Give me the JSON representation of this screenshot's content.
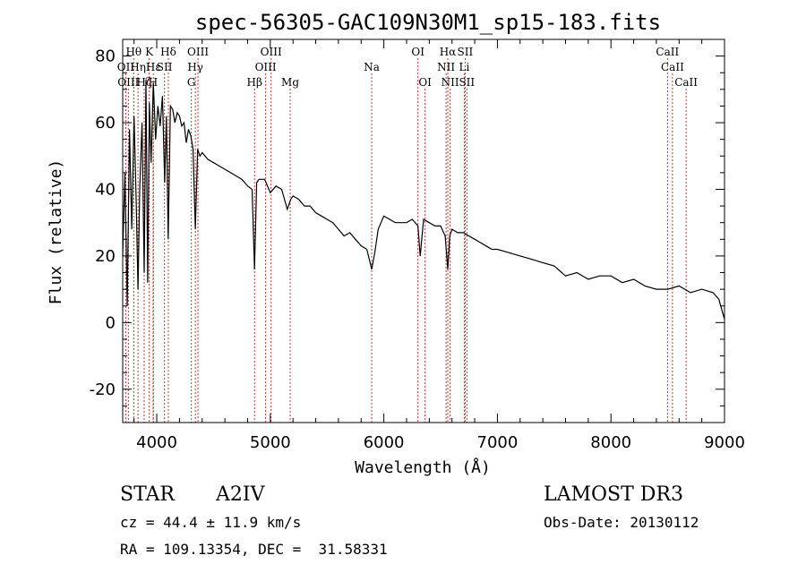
{
  "chart_data": {
    "type": "line",
    "title": "spec-56305-GAC109N30M1_sp15-183.fits",
    "xlabel": "Wavelength (Å)",
    "ylabel": "Flux (relative)",
    "xlim": [
      3700,
      9000
    ],
    "ylim": [
      -30,
      85
    ],
    "x_ticks": [
      4000,
      5000,
      6000,
      7000,
      8000,
      9000
    ],
    "y_ticks": [
      -20,
      0,
      20,
      40,
      60,
      80
    ],
    "grid": false,
    "series": [
      {
        "name": "flux",
        "color": "#000000",
        "x": [
          3700,
          3720,
          3740,
          3760,
          3780,
          3800,
          3820,
          3835,
          3850,
          3870,
          3889,
          3905,
          3920,
          3935,
          3950,
          3970,
          3990,
          4010,
          4030,
          4050,
          4070,
          4085,
          4101,
          4120,
          4140,
          4160,
          4180,
          4200,
          4220,
          4240,
          4260,
          4280,
          4300,
          4320,
          4340,
          4360,
          4380,
          4400,
          4450,
          4500,
          4550,
          4600,
          4650,
          4700,
          4750,
          4800,
          4840,
          4861,
          4880,
          4900,
          4950,
          5000,
          5050,
          5100,
          5150,
          5180,
          5200,
          5250,
          5300,
          5350,
          5400,
          5450,
          5500,
          5550,
          5600,
          5650,
          5700,
          5750,
          5800,
          5850,
          5893,
          5920,
          5950,
          6000,
          6050,
          6100,
          6150,
          6200,
          6250,
          6300,
          6320,
          6350,
          6400,
          6450,
          6500,
          6540,
          6563,
          6580,
          6600,
          6650,
          6700,
          6750,
          6800,
          6850,
          6900,
          6950,
          7000,
          7100,
          7200,
          7300,
          7400,
          7500,
          7600,
          7700,
          7800,
          7900,
          8000,
          8100,
          8200,
          8300,
          8400,
          8500,
          8600,
          8700,
          8800,
          8900,
          8950,
          9000
        ],
        "values": [
          20,
          45,
          5,
          58,
          28,
          62,
          35,
          10,
          40,
          60,
          15,
          73,
          12,
          66,
          48,
          72,
          55,
          65,
          59,
          68,
          42,
          62,
          25,
          65,
          64,
          60,
          63,
          62,
          59,
          60,
          54,
          58,
          56,
          52,
          28,
          52,
          50,
          51,
          49,
          48,
          47,
          46,
          45,
          44,
          43,
          41,
          40,
          16,
          42,
          43,
          43,
          39,
          41,
          40,
          34,
          37,
          38,
          37,
          35,
          35,
          33,
          32,
          31,
          30,
          28,
          26,
          27,
          25,
          23,
          22,
          16,
          21,
          28,
          32,
          31,
          30,
          30,
          30,
          31,
          29,
          20,
          31,
          30,
          29,
          29,
          26,
          16,
          26,
          28,
          27,
          27,
          26,
          25,
          24,
          23,
          22,
          22,
          21,
          20,
          19,
          18,
          17,
          14,
          15,
          13,
          14,
          14,
          12,
          13,
          11,
          10,
          10,
          11,
          9,
          10,
          9,
          7,
          1
        ]
      }
    ],
    "line_labels": [
      {
        "text": "Hθ",
        "x": 3797,
        "row": 1
      },
      {
        "text": "K",
        "x": 3934,
        "row": 1
      },
      {
        "text": "Hδ",
        "x": 4102,
        "row": 1
      },
      {
        "text": "OIII",
        "x": 4363,
        "row": 1
      },
      {
        "text": "OIII",
        "x": 5007,
        "row": 1
      },
      {
        "text": "OI",
        "x": 6300,
        "row": 1
      },
      {
        "text": "Hα",
        "x": 6563,
        "row": 1
      },
      {
        "text": "SII",
        "x": 6716,
        "row": 1
      },
      {
        "text": "CaII",
        "x": 8498,
        "row": 1
      },
      {
        "text": "OII",
        "x": 3727,
        "row": 2
      },
      {
        "text": "Hη",
        "x": 3835,
        "row": 2
      },
      {
        "text": "Hε",
        "x": 3970,
        "row": 2
      },
      {
        "text": "SII",
        "x": 4068,
        "row": 2
      },
      {
        "text": "Hγ",
        "x": 4340,
        "row": 2
      },
      {
        "text": "OIII",
        "x": 4959,
        "row": 2
      },
      {
        "text": "Na",
        "x": 5893,
        "row": 2
      },
      {
        "text": "NII",
        "x": 6548,
        "row": 2
      },
      {
        "text": "Li",
        "x": 6708,
        "row": 2
      },
      {
        "text": "CaII",
        "x": 8542,
        "row": 2
      },
      {
        "text": "OIII",
        "x": 3750,
        "row": 3
      },
      {
        "text": "Hζ",
        "x": 3889,
        "row": 3
      },
      {
        "text": "H",
        "x": 3968,
        "row": 3
      },
      {
        "text": "G",
        "x": 4305,
        "row": 3
      },
      {
        "text": "Hβ",
        "x": 4861,
        "row": 3
      },
      {
        "text": "Mg",
        "x": 5175,
        "row": 3
      },
      {
        "text": "OI",
        "x": 6363,
        "row": 3
      },
      {
        "text": "NII",
        "x": 6584,
        "row": 3
      },
      {
        "text": "SII",
        "x": 6731,
        "row": 3
      },
      {
        "text": "CaII",
        "x": 8662,
        "row": 3
      }
    ],
    "line_marker_color": "#c0392b"
  },
  "info": {
    "class": "STAR",
    "subclass": "A2IV",
    "survey": "LAMOST DR3",
    "cz": "cz = 44.4 ± 11.9 km/s",
    "obs_date": "Obs-Date: 20130112",
    "coords": "RA = 109.13354, DEC =  31.58331"
  }
}
